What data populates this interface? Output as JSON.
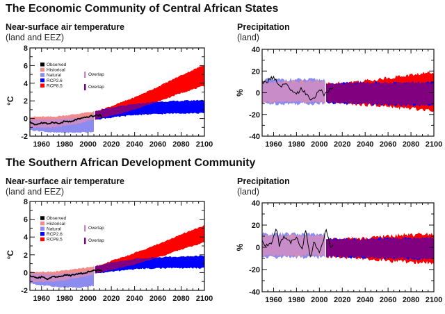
{
  "regions": [
    {
      "title": "The Economic Community of Central African States",
      "panels": {
        "temperature": {
          "title": "Near-surface air temperature",
          "subtitle": "(land and EEZ)"
        },
        "precipitation": {
          "title": "Precipitation",
          "subtitle": "(land)"
        }
      }
    },
    {
      "title": "The Southern African Development Community",
      "panels": {
        "temperature": {
          "title": "Near-surface air temperature",
          "subtitle": "(land and EEZ)"
        },
        "precipitation": {
          "title": "Precipitation",
          "subtitle": "(land)"
        }
      }
    }
  ],
  "legend": {
    "entries": [
      {
        "label": "Observed",
        "color": "#000000"
      },
      {
        "label": "Historical",
        "color": "#f08c8c"
      },
      {
        "label": "Natural",
        "color": "#8c8cf0"
      },
      {
        "label": "RCP2.6",
        "color": "#0000ff"
      },
      {
        "label": "RCP8.5",
        "color": "#ff0000"
      }
    ],
    "overlaps": [
      {
        "label": "Overlap",
        "color": "#c88cc8"
      },
      {
        "label": "Overlap",
        "color": "#800080"
      }
    ]
  },
  "chart_data": [
    {
      "id": "ecca-temperature",
      "type": "area",
      "title": "Near-surface air temperature (land and EEZ)",
      "region": "The Economic Community of Central African States",
      "xlabel": "",
      "ylabel": "°C",
      "xlim": [
        1950,
        2100
      ],
      "ylim": [
        -2,
        8
      ],
      "xticks": [
        1960,
        1980,
        2000,
        2020,
        2040,
        2060,
        2080,
        2100
      ],
      "yticks": [
        -2,
        0,
        2,
        4,
        6,
        8
      ],
      "legend_position": "top-left",
      "x": [
        1950,
        1970,
        1990,
        2005,
        2020,
        2040,
        2060,
        2080,
        2100
      ],
      "series": [
        {
          "name": "Historical",
          "kind": "band",
          "x": [
            1950,
            1970,
            1990,
            2005
          ],
          "low": [
            -1.0,
            -1.0,
            -0.6,
            -0.1
          ],
          "high": [
            0.2,
            0.2,
            0.5,
            0.8
          ]
        },
        {
          "name": "Natural",
          "kind": "band",
          "x": [
            1950,
            1970,
            1990,
            2005
          ],
          "low": [
            -1.3,
            -1.6,
            -1.6,
            -1.5
          ],
          "high": [
            -0.1,
            -0.1,
            0.1,
            0.2
          ]
        },
        {
          "name": "RCP2.6",
          "kind": "band",
          "x": [
            2006,
            2020,
            2040,
            2060,
            2080,
            2100
          ],
          "low": [
            -0.1,
            0.1,
            0.4,
            0.5,
            0.6,
            0.6
          ],
          "high": [
            0.8,
            1.2,
            1.6,
            1.9,
            2.0,
            2.1
          ]
        },
        {
          "name": "RCP8.5",
          "kind": "band",
          "x": [
            2006,
            2020,
            2040,
            2060,
            2080,
            2100
          ],
          "low": [
            -0.1,
            0.3,
            1.0,
            1.9,
            2.9,
            3.7
          ],
          "high": [
            0.8,
            1.4,
            2.4,
            3.6,
            4.9,
            6.1
          ]
        },
        {
          "name": "Observed",
          "kind": "line",
          "x": [
            1950,
            1955,
            1960,
            1965,
            1970,
            1975,
            1980,
            1985,
            1990,
            1995,
            2000,
            2005,
            2010,
            2012
          ],
          "y": [
            -0.4,
            -0.7,
            -0.5,
            -0.6,
            -0.4,
            -0.6,
            -0.3,
            -0.4,
            -0.1,
            0.0,
            0.2,
            0.3,
            0.4,
            0.1
          ]
        }
      ]
    },
    {
      "id": "ecca-precipitation",
      "type": "area",
      "title": "Precipitation (land)",
      "region": "The Economic Community of Central African States",
      "xlabel": "",
      "ylabel": "%",
      "xlim": [
        1950,
        2100
      ],
      "ylim": [
        -40,
        40
      ],
      "xticks": [
        1960,
        1980,
        2000,
        2020,
        2040,
        2060,
        2080,
        2100
      ],
      "yticks": [
        -40,
        -20,
        0,
        20,
        40
      ],
      "series": [
        {
          "name": "Historical",
          "kind": "band",
          "x": [
            1950,
            1980,
            2005
          ],
          "low": [
            -8,
            -8,
            -8
          ],
          "high": [
            10,
            10,
            10
          ]
        },
        {
          "name": "Natural",
          "kind": "band",
          "x": [
            1950,
            1980,
            2005
          ],
          "low": [
            -10,
            -10,
            -10
          ],
          "high": [
            12,
            12,
            12
          ]
        },
        {
          "name": "RCP2.6",
          "kind": "band",
          "x": [
            2006,
            2040,
            2070,
            2100
          ],
          "low": [
            -9,
            -10,
            -11,
            -11
          ],
          "high": [
            8,
            9,
            9,
            9
          ]
        },
        {
          "name": "RCP8.5",
          "kind": "band",
          "x": [
            2006,
            2040,
            2070,
            2100
          ],
          "low": [
            -9,
            -11,
            -14,
            -16
          ],
          "high": [
            8,
            11,
            15,
            19
          ]
        },
        {
          "name": "Observed",
          "kind": "line",
          "x": [
            1950,
            1955,
            1960,
            1965,
            1970,
            1975,
            1980,
            1985,
            1990,
            1995,
            2000,
            2005,
            2010,
            2012
          ],
          "y": [
            8,
            11,
            15,
            5,
            8,
            2,
            -2,
            4,
            -4,
            -6,
            3,
            -2,
            3,
            4
          ]
        }
      ]
    },
    {
      "id": "sadc-temperature",
      "type": "area",
      "title": "Near-surface air temperature (land and EEZ)",
      "region": "The Southern African Development Community",
      "xlabel": "",
      "ylabel": "°C",
      "xlim": [
        1950,
        2100
      ],
      "ylim": [
        -2,
        8
      ],
      "xticks": [
        1960,
        1980,
        2000,
        2020,
        2040,
        2060,
        2080,
        2100
      ],
      "yticks": [
        -2,
        0,
        2,
        4,
        6,
        8
      ],
      "legend_position": "top-left",
      "series": [
        {
          "name": "Historical",
          "kind": "band",
          "x": [
            1950,
            1970,
            1990,
            2005
          ],
          "low": [
            -1.0,
            -1.0,
            -0.6,
            -0.2
          ],
          "high": [
            0.1,
            0.1,
            0.4,
            0.7
          ]
        },
        {
          "name": "Natural",
          "kind": "band",
          "x": [
            1950,
            1970,
            1990,
            2005
          ],
          "low": [
            -1.2,
            -1.6,
            -1.7,
            -1.5
          ],
          "high": [
            -0.1,
            -0.2,
            0.0,
            0.2
          ]
        },
        {
          "name": "RCP2.6",
          "kind": "band",
          "x": [
            2006,
            2020,
            2040,
            2060,
            2080,
            2100
          ],
          "low": [
            -0.1,
            0.1,
            0.4,
            0.5,
            0.5,
            0.5
          ],
          "high": [
            0.7,
            1.1,
            1.5,
            1.7,
            1.8,
            1.9
          ]
        },
        {
          "name": "RCP8.5",
          "kind": "band",
          "x": [
            2006,
            2020,
            2040,
            2060,
            2080,
            2100
          ],
          "low": [
            -0.1,
            0.3,
            0.9,
            1.7,
            2.6,
            3.4
          ],
          "high": [
            0.7,
            1.3,
            2.2,
            3.2,
            4.3,
            5.3
          ]
        },
        {
          "name": "Observed",
          "kind": "line",
          "x": [
            1950,
            1955,
            1960,
            1965,
            1970,
            1975,
            1980,
            1985,
            1990,
            1995,
            2000,
            2005,
            2010,
            2012
          ],
          "y": [
            -0.4,
            -0.6,
            -0.5,
            -0.7,
            -0.4,
            -0.5,
            -0.3,
            -0.3,
            -0.1,
            -0.1,
            0.1,
            0.2,
            0.3,
            0.1
          ]
        }
      ]
    },
    {
      "id": "sadc-precipitation",
      "type": "area",
      "title": "Precipitation (land)",
      "region": "The Southern African Development Community",
      "xlabel": "",
      "ylabel": "%",
      "xlim": [
        1950,
        2100
      ],
      "ylim": [
        -40,
        40
      ],
      "xticks": [
        1960,
        1980,
        2000,
        2020,
        2040,
        2060,
        2080,
        2100
      ],
      "yticks": [
        -40,
        -20,
        0,
        20,
        40
      ],
      "series": [
        {
          "name": "Historical",
          "kind": "band",
          "x": [
            1950,
            1980,
            2005
          ],
          "low": [
            -7,
            -7,
            -7
          ],
          "high": [
            10,
            10,
            10
          ]
        },
        {
          "name": "Natural",
          "kind": "band",
          "x": [
            1950,
            1980,
            2005
          ],
          "low": [
            -9,
            -9,
            -9
          ],
          "high": [
            12,
            12,
            12
          ]
        },
        {
          "name": "RCP2.6",
          "kind": "band",
          "x": [
            2006,
            2040,
            2070,
            2100
          ],
          "low": [
            -8,
            -9,
            -10,
            -10
          ],
          "high": [
            7,
            7,
            8,
            8
          ]
        },
        {
          "name": "RCP8.5",
          "kind": "band",
          "x": [
            2006,
            2040,
            2070,
            2100
          ],
          "low": [
            -8,
            -10,
            -13,
            -14
          ],
          "high": [
            7,
            8,
            11,
            12
          ]
        },
        {
          "name": "Observed",
          "kind": "line",
          "x": [
            1950,
            1955,
            1960,
            1962,
            1965,
            1970,
            1975,
            1980,
            1985,
            1988,
            1992,
            1995,
            2000,
            2006,
            2010,
            2012
          ],
          "y": [
            5,
            0,
            8,
            18,
            2,
            10,
            4,
            8,
            0,
            15,
            -10,
            5,
            -3,
            15,
            -2,
            3
          ]
        }
      ]
    }
  ]
}
